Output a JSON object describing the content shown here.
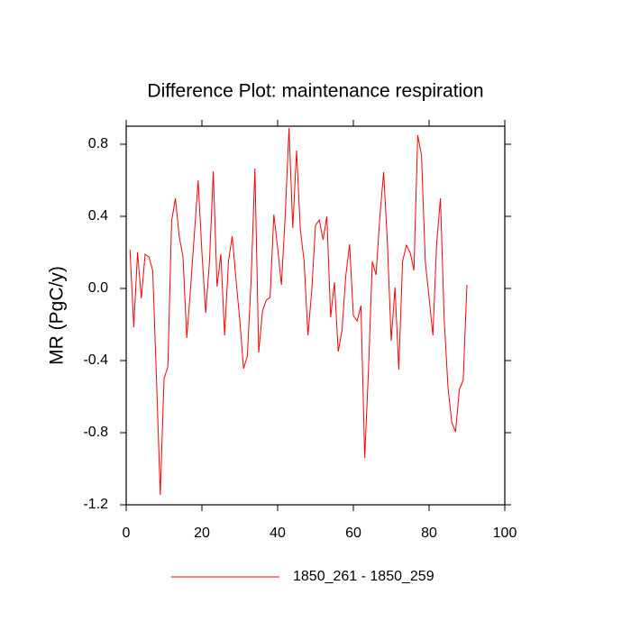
{
  "chart_data": {
    "type": "line",
    "title": "Difference Plot: maintenance respiration",
    "y_label": "MR  (PgC/y)",
    "x": [
      1,
      2,
      3,
      4,
      5,
      6,
      7,
      8,
      9,
      10,
      11,
      12,
      13,
      14,
      15,
      16,
      17,
      18,
      19,
      20,
      21,
      22,
      23,
      24,
      25,
      26,
      27,
      28,
      29,
      30,
      31,
      32,
      33,
      34,
      35,
      36,
      37,
      38,
      39,
      40,
      41,
      42,
      43,
      44,
      45,
      46,
      47,
      48,
      49,
      50,
      51,
      52,
      53,
      54,
      55,
      56,
      57,
      58,
      59,
      60,
      61,
      62,
      63,
      64,
      65,
      66,
      67,
      68,
      69,
      70,
      71,
      72,
      73,
      74,
      75,
      76,
      77,
      78,
      79,
      80,
      81,
      82,
      83,
      84,
      85,
      86,
      87,
      88,
      89,
      90
    ],
    "series": [
      {
        "name": "1850_261 - 1850_259",
        "color": "#ff0000",
        "values": [
          0.215,
          -0.215,
          0.2,
          -0.055,
          0.19,
          0.175,
          0.1,
          -0.5,
          -1.145,
          -0.5,
          -0.435,
          0.375,
          0.5,
          0.29,
          0.175,
          -0.275,
          0,
          0.3,
          0.6,
          0.2,
          -0.135,
          0.15,
          0.65,
          0.01,
          0.19,
          -0.26,
          0.15,
          0.29,
          0.05,
          -0.175,
          -0.445,
          -0.375,
          0.05,
          0.665,
          -0.355,
          -0.125,
          -0.065,
          -0.05,
          0.41,
          0.225,
          0.02,
          0.4,
          0.89,
          0.335,
          0.765,
          0.325,
          0.15,
          -0.26,
          -0.015,
          0.35,
          0.38,
          0.27,
          0.4,
          -0.16,
          0.035,
          -0.35,
          -0.235,
          0.07,
          0.245,
          -0.15,
          -0.18,
          -0.095,
          -0.94,
          -0.45,
          0.15,
          0.075,
          0.4,
          0.645,
          0.25,
          -0.29,
          0.005,
          -0.45,
          0.15,
          0.24,
          0.2,
          0.1,
          0.85,
          0.74,
          0.15,
          -0.05,
          -0.26,
          0.25,
          0.5,
          -0.175,
          -0.55,
          -0.745,
          -0.795,
          -0.56,
          -0.51,
          0.02
        ]
      }
    ],
    "xlim": [
      0,
      100
    ],
    "xticks": [
      0,
      20,
      40,
      60,
      80,
      100
    ],
    "ylim": [
      -1.2,
      0.9
    ],
    "yticks": [
      {
        "value": -1.2,
        "label": "-1.2"
      },
      {
        "value": -0.8,
        "label": "-0.8"
      },
      {
        "value": -0.4,
        "label": "-0.4"
      },
      {
        "value": 0,
        "label": "0.0"
      },
      {
        "value": 0.4,
        "label": "0.4"
      },
      {
        "value": 0.8,
        "label": "0.8"
      }
    ],
    "legend": "bottom"
  }
}
